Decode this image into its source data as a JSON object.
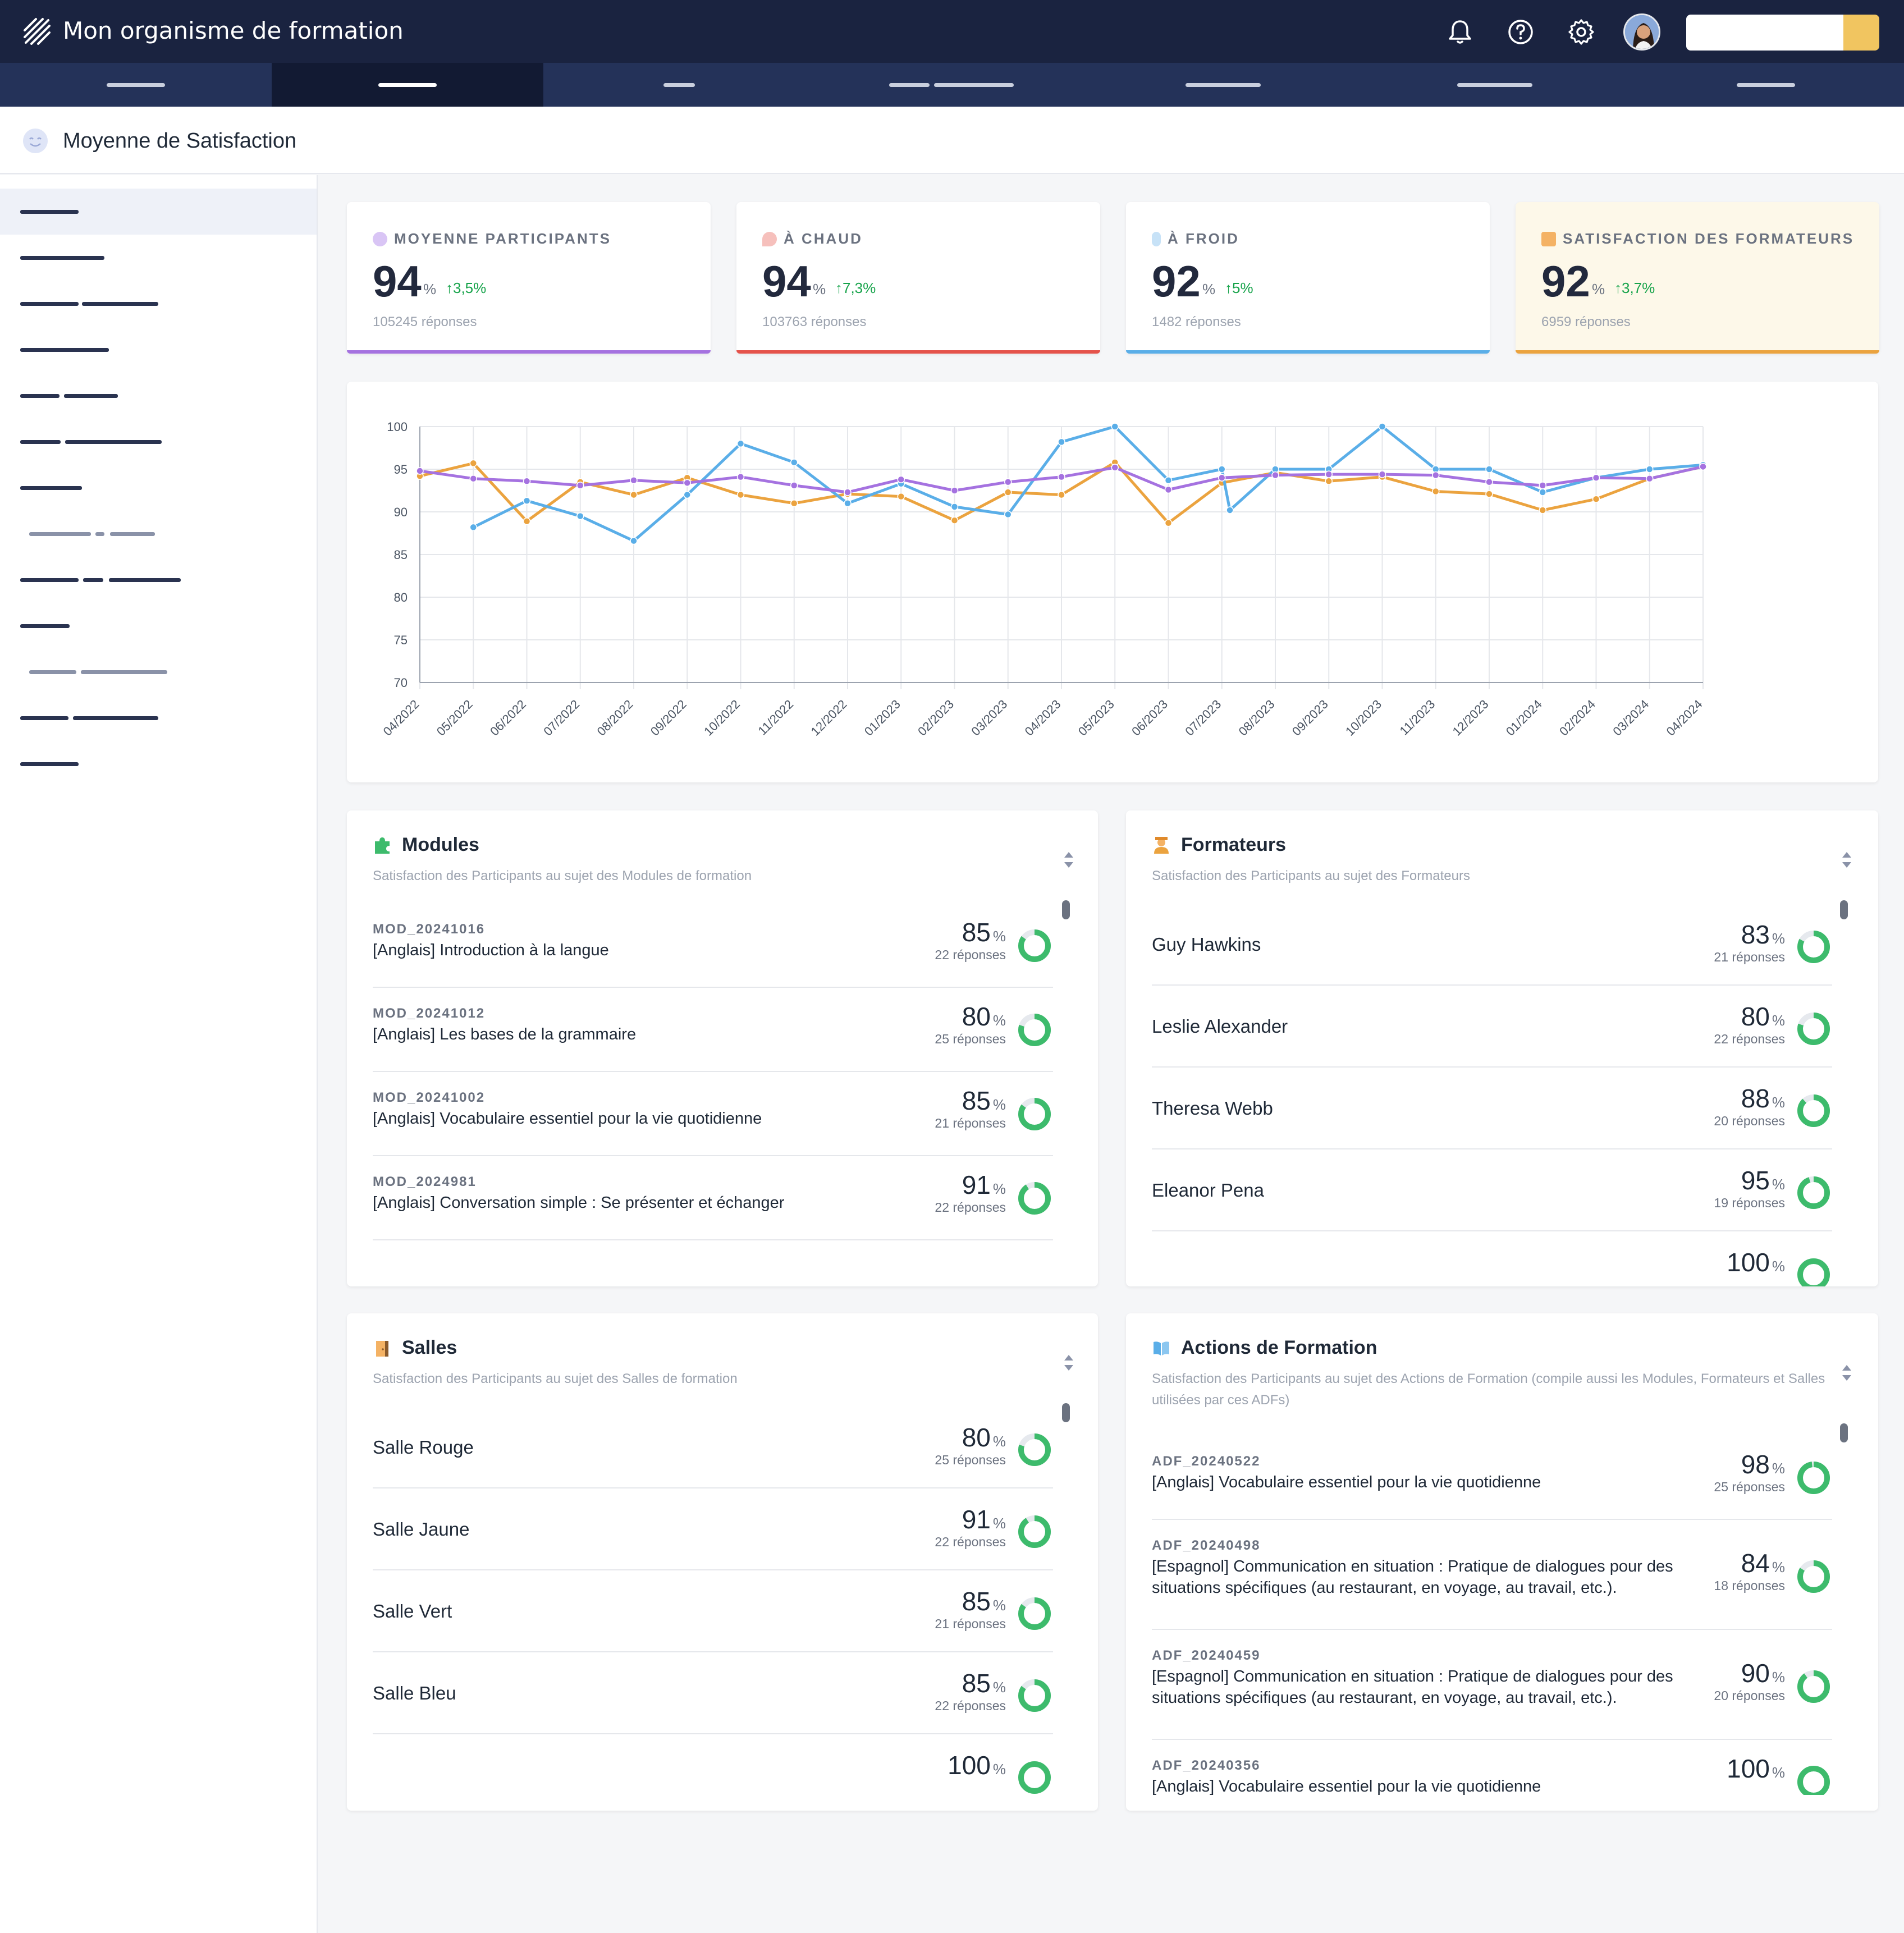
{
  "app": {
    "title": "Mon organisme de formation"
  },
  "topbar": {
    "icons": [
      "bell-icon",
      "help-icon",
      "gear-icon"
    ],
    "search_placeholder": ""
  },
  "page": {
    "title": "Moyenne de Satisfaction"
  },
  "stats": [
    {
      "label": "MOYENNE PARTICIPANTS",
      "value": "94",
      "pct": "%",
      "trend": "3,5%",
      "responses": "105245 réponses",
      "color": "#a572e0",
      "icon": "thermometer-icon"
    },
    {
      "label": "À CHAUD",
      "value": "94",
      "pct": "%",
      "trend": "7,3%",
      "responses": "103763 réponses",
      "color": "#e5534b",
      "icon": "flame-icon"
    },
    {
      "label": "À FROID",
      "value": "92",
      "pct": "%",
      "trend": "5%",
      "responses": "1482 réponses",
      "color": "#5aaee8",
      "icon": "cold-thermometer-icon"
    },
    {
      "label": "SATISFACTION DES FORMATEURS",
      "value": "92",
      "pct": "%",
      "trend": "3,7%",
      "responses": "6959 réponses",
      "color": "#eba33f",
      "icon": "trainer-icon"
    }
  ],
  "chart_data": {
    "type": "line",
    "x": [
      "04/2022",
      "05/2022",
      "06/2022",
      "07/2022",
      "08/2022",
      "09/2022",
      "10/2022",
      "11/2022",
      "12/2022",
      "01/2023",
      "02/2023",
      "03/2023",
      "04/2023",
      "05/2023",
      "06/2023",
      "07/2023",
      "08/2023",
      "09/2023",
      "10/2023",
      "11/2023",
      "12/2023",
      "01/2024",
      "02/2024",
      "03/2024",
      "04/2024"
    ],
    "ylim": [
      70,
      100
    ],
    "yticks": [
      70,
      75,
      80,
      85,
      90,
      95,
      100
    ],
    "grid": true,
    "series": [
      {
        "color": "#eba33f",
        "values": [
          94.2,
          95.7,
          88.9,
          93.5,
          92,
          94,
          92,
          91,
          92.1,
          91.8,
          89,
          92.3,
          92,
          95.8,
          88.7,
          93.4,
          94.6,
          93.6,
          94.1,
          92.4,
          92.1,
          90.2,
          91.5,
          93.9,
          95.3
        ]
      },
      {
        "color": "#5aaee8",
        "values": [
          null,
          88.2,
          91.3,
          89.5,
          86.6,
          92,
          98,
          95.8,
          91,
          93.3,
          90.6,
          89.7,
          98.2,
          100,
          93.7,
          95,
          95,
          95,
          100,
          95,
          95,
          92.3,
          94,
          95,
          95.5
        ],
        "extra": {
          "x_index": 15.15,
          "y": 90.2
        }
      },
      {
        "color": "#a572e0",
        "values": [
          94.8,
          93.9,
          93.6,
          93.1,
          93.7,
          93.4,
          94.1,
          93.1,
          92.3,
          93.8,
          92.5,
          93.5,
          94.1,
          95.2,
          92.6,
          94,
          94.3,
          94.4,
          94.4,
          94.3,
          93.5,
          93.1,
          94,
          93.9,
          95.3
        ]
      }
    ]
  },
  "modules": {
    "title": "Modules",
    "subtitle": "Satisfaction des Participants au sujet des Modules de formation",
    "rows": [
      {
        "code": "MOD_20241016",
        "name": "[Anglais] Introduction à la langue",
        "value": "85",
        "responses": "22 réponses",
        "pct": 0.85
      },
      {
        "code": "MOD_20241012",
        "name": "[Anglais] Les bases de la grammaire",
        "value": "80",
        "responses": "25 réponses",
        "pct": 0.8
      },
      {
        "code": "MOD_20241002",
        "name": "[Anglais] Vocabulaire essentiel pour la vie quotidienne",
        "value": "85",
        "responses": "21 réponses",
        "pct": 0.85
      },
      {
        "code": "MOD_2024981",
        "name": "[Anglais] Conversation simple : Se présenter et échanger",
        "value": "91",
        "responses": "22 réponses",
        "pct": 0.91
      }
    ]
  },
  "formateurs": {
    "title": "Formateurs",
    "subtitle": "Satisfaction des Participants au sujet des Formateurs",
    "rows": [
      {
        "name": "Guy Hawkins",
        "value": "83",
        "responses": "21 réponses",
        "pct": 0.83
      },
      {
        "name": "Leslie Alexander",
        "value": "80",
        "responses": "22 réponses",
        "pct": 0.8
      },
      {
        "name": "Theresa Webb",
        "value": "88",
        "responses": "20 réponses",
        "pct": 0.88
      },
      {
        "name": "Eleanor Pena",
        "value": "95",
        "responses": "19 réponses",
        "pct": 0.95
      },
      {
        "name": "",
        "value": "100",
        "responses": "",
        "pct": 1.0
      }
    ]
  },
  "salles": {
    "title": "Salles",
    "subtitle": "Satisfaction des Participants au sujet des Salles de formation",
    "rows": [
      {
        "name": "Salle Rouge",
        "value": "80",
        "responses": "25 réponses",
        "pct": 0.8
      },
      {
        "name": "Salle Jaune",
        "value": "91",
        "responses": "22 réponses",
        "pct": 0.91
      },
      {
        "name": "Salle Vert",
        "value": "85",
        "responses": "21 réponses",
        "pct": 0.85
      },
      {
        "name": "Salle Bleu",
        "value": "85",
        "responses": "22 réponses",
        "pct": 0.85
      },
      {
        "name": "",
        "value": "100",
        "responses": "",
        "pct": 1.0
      }
    ]
  },
  "actions": {
    "title": "Actions de Formation",
    "subtitle": "Satisfaction des Participants au sujet des Actions de Formation (compile aussi les Modules, Formateurs et Salles utilisées par ces ADFs)",
    "rows": [
      {
        "code": "ADF_20240522",
        "name": "[Anglais] Vocabulaire essentiel pour la vie quotidienne",
        "value": "98",
        "responses": "25 réponses",
        "pct": 0.98
      },
      {
        "code": "ADF_20240498",
        "name": "[Espagnol] Communication en situation : Pratique de dialogues pour des situations spécifiques (au restaurant, en voyage, au travail, etc.).",
        "value": "84",
        "responses": "18 réponses",
        "pct": 0.84
      },
      {
        "code": "ADF_20240459",
        "name": "[Espagnol] Communication en situation : Pratique de dialogues pour des situations spécifiques (au restaurant, en voyage, au travail, etc.).",
        "value": "90",
        "responses": "20 réponses",
        "pct": 0.9
      },
      {
        "code": "ADF_20240356",
        "name": "[Anglais] Vocabulaire essentiel pour la vie quotidienne",
        "value": "100",
        "responses": "",
        "pct": 1.0
      }
    ]
  },
  "colors": {
    "ring": "#3dbb6c",
    "ring_bg": "#e6e9ee"
  }
}
